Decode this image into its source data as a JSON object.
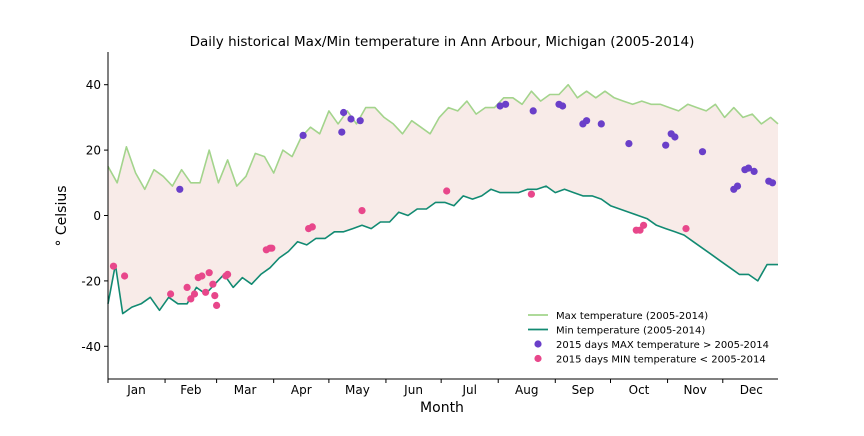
{
  "chart_data": {
    "type": "line",
    "title": "Daily historical Max/Min temperature in Ann Arbour, Michigan (2005-2014)",
    "xlabel": "Month",
    "ylabel": "° Celsius",
    "ylim": [
      -50,
      50
    ],
    "xlim": [
      1,
      365
    ],
    "y_ticks": [
      -40,
      -20,
      0,
      20,
      40
    ],
    "month_labels": [
      "Jan",
      "Feb",
      "Mar",
      "Apr",
      "May",
      "Jun",
      "Jul",
      "Aug",
      "Sep",
      "Oct",
      "Nov",
      "Dec"
    ],
    "legend_position": "lower right",
    "fill_between_color": "#f8ebe8",
    "series": [
      {
        "name": "Max temperature (2005-2014)",
        "kind": "line",
        "color": "#a3d48c",
        "points": [
          [
            1,
            15
          ],
          [
            6,
            10
          ],
          [
            11,
            21
          ],
          [
            16,
            13
          ],
          [
            21,
            8
          ],
          [
            26,
            14
          ],
          [
            31,
            12
          ],
          [
            36,
            9
          ],
          [
            41,
            14
          ],
          [
            46,
            10
          ],
          [
            51,
            10
          ],
          [
            56,
            20
          ],
          [
            61,
            10
          ],
          [
            66,
            17
          ],
          [
            71,
            9
          ],
          [
            76,
            12
          ],
          [
            81,
            19
          ],
          [
            86,
            18
          ],
          [
            91,
            13
          ],
          [
            96,
            20
          ],
          [
            101,
            18
          ],
          [
            106,
            24
          ],
          [
            111,
            27
          ],
          [
            116,
            25
          ],
          [
            121,
            32
          ],
          [
            126,
            28
          ],
          [
            131,
            32
          ],
          [
            136,
            28
          ],
          [
            141,
            33
          ],
          [
            146,
            33
          ],
          [
            151,
            30
          ],
          [
            156,
            28
          ],
          [
            161,
            25
          ],
          [
            166,
            29
          ],
          [
            171,
            27
          ],
          [
            176,
            25
          ],
          [
            181,
            30
          ],
          [
            186,
            33
          ],
          [
            191,
            32
          ],
          [
            196,
            35
          ],
          [
            201,
            31
          ],
          [
            206,
            33
          ],
          [
            211,
            33
          ],
          [
            216,
            36
          ],
          [
            221,
            36
          ],
          [
            226,
            34
          ],
          [
            231,
            38
          ],
          [
            236,
            35
          ],
          [
            241,
            37
          ],
          [
            246,
            37
          ],
          [
            251,
            40
          ],
          [
            256,
            36
          ],
          [
            261,
            38
          ],
          [
            266,
            36
          ],
          [
            271,
            38
          ],
          [
            276,
            36
          ],
          [
            281,
            35
          ],
          [
            286,
            34
          ],
          [
            291,
            35
          ],
          [
            296,
            34
          ],
          [
            301,
            34
          ],
          [
            306,
            33
          ],
          [
            311,
            32
          ],
          [
            316,
            34
          ],
          [
            321,
            33
          ],
          [
            326,
            32
          ],
          [
            331,
            34
          ],
          [
            336,
            30
          ],
          [
            341,
            33
          ],
          [
            346,
            30
          ],
          [
            351,
            31
          ],
          [
            356,
            28
          ],
          [
            361,
            30
          ],
          [
            365,
            28
          ]
        ]
      },
      {
        "name": "Min temperature (2005-2014)",
        "kind": "line",
        "color": "#128a72",
        "points": [
          [
            1,
            -27
          ],
          [
            5,
            -15
          ],
          [
            9,
            -30
          ],
          [
            14,
            -28
          ],
          [
            19,
            -27
          ],
          [
            24,
            -25
          ],
          [
            29,
            -29
          ],
          [
            34,
            -25
          ],
          [
            39,
            -27
          ],
          [
            44,
            -27
          ],
          [
            49,
            -22
          ],
          [
            54,
            -24
          ],
          [
            59,
            -21
          ],
          [
            64,
            -18
          ],
          [
            69,
            -22
          ],
          [
            74,
            -19
          ],
          [
            79,
            -21
          ],
          [
            84,
            -18
          ],
          [
            89,
            -16
          ],
          [
            94,
            -13
          ],
          [
            99,
            -11
          ],
          [
            104,
            -8
          ],
          [
            109,
            -9
          ],
          [
            114,
            -7
          ],
          [
            119,
            -7
          ],
          [
            124,
            -5
          ],
          [
            129,
            -5
          ],
          [
            134,
            -4
          ],
          [
            139,
            -3
          ],
          [
            144,
            -4
          ],
          [
            149,
            -2
          ],
          [
            154,
            -2
          ],
          [
            159,
            1
          ],
          [
            164,
            0
          ],
          [
            169,
            2
          ],
          [
            174,
            2
          ],
          [
            179,
            4
          ],
          [
            184,
            4
          ],
          [
            189,
            3
          ],
          [
            194,
            6
          ],
          [
            199,
            5
          ],
          [
            204,
            6
          ],
          [
            209,
            8
          ],
          [
            214,
            7
          ],
          [
            219,
            7
          ],
          [
            224,
            7
          ],
          [
            229,
            8
          ],
          [
            234,
            8
          ],
          [
            239,
            9
          ],
          [
            244,
            7
          ],
          [
            249,
            8
          ],
          [
            254,
            7
          ],
          [
            259,
            6
          ],
          [
            264,
            6
          ],
          [
            269,
            5
          ],
          [
            274,
            3
          ],
          [
            279,
            2
          ],
          [
            284,
            1
          ],
          [
            289,
            0
          ],
          [
            294,
            -1
          ],
          [
            299,
            -3
          ],
          [
            304,
            -4
          ],
          [
            309,
            -5
          ],
          [
            314,
            -6
          ],
          [
            319,
            -8
          ],
          [
            324,
            -10
          ],
          [
            329,
            -12
          ],
          [
            334,
            -14
          ],
          [
            339,
            -16
          ],
          [
            344,
            -18
          ],
          [
            349,
            -18
          ],
          [
            354,
            -20
          ],
          [
            359,
            -15
          ],
          [
            365,
            -15
          ]
        ]
      },
      {
        "name": "2015 days MAX temperature > 2005-2014",
        "kind": "scatter",
        "color": "#6a3fc9",
        "points": [
          [
            40,
            8
          ],
          [
            107,
            24.5
          ],
          [
            128,
            25.5
          ],
          [
            129,
            31.5
          ],
          [
            133,
            29.5
          ],
          [
            138,
            29
          ],
          [
            214,
            33.5
          ],
          [
            217,
            34
          ],
          [
            232,
            32
          ],
          [
            246,
            34
          ],
          [
            248,
            33.5
          ],
          [
            259,
            28
          ],
          [
            261,
            29
          ],
          [
            269,
            28
          ],
          [
            284,
            22
          ],
          [
            304,
            21.5
          ],
          [
            307,
            25
          ],
          [
            309,
            24
          ],
          [
            324,
            19.5
          ],
          [
            341,
            8
          ],
          [
            343,
            9
          ],
          [
            347,
            14
          ],
          [
            349,
            14.5
          ],
          [
            352,
            13.5
          ],
          [
            360,
            10.5
          ],
          [
            362,
            10
          ]
        ]
      },
      {
        "name": "2015 days MIN temperature < 2005-2014",
        "kind": "scatter",
        "color": "#e8478b",
        "points": [
          [
            4,
            -15.5
          ],
          [
            10,
            -18.5
          ],
          [
            35,
            -24
          ],
          [
            44,
            -22
          ],
          [
            46,
            -25.5
          ],
          [
            48,
            -24
          ],
          [
            50,
            -19
          ],
          [
            52,
            -18.5
          ],
          [
            54,
            -23.5
          ],
          [
            56,
            -17.5
          ],
          [
            58,
            -21
          ],
          [
            59,
            -24.5
          ],
          [
            60,
            -27.5
          ],
          [
            65,
            -18.5
          ],
          [
            66,
            -18
          ],
          [
            87,
            -10.5
          ],
          [
            89,
            -10
          ],
          [
            90,
            -10
          ],
          [
            110,
            -4
          ],
          [
            112,
            -3.5
          ],
          [
            139,
            1.5
          ],
          [
            185,
            7.5
          ],
          [
            231,
            6.5
          ],
          [
            288,
            -4.5
          ],
          [
            290,
            -4.5
          ],
          [
            292,
            -3
          ],
          [
            315,
            -4
          ]
        ]
      }
    ]
  }
}
